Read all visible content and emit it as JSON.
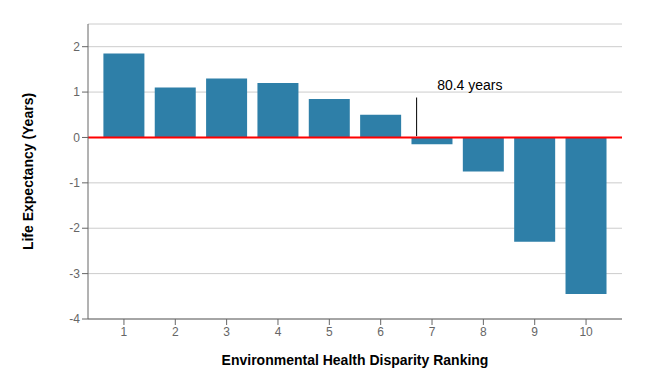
{
  "chart_data": {
    "type": "bar",
    "categories": [
      1,
      2,
      3,
      4,
      5,
      6,
      7,
      8,
      9,
      10
    ],
    "values": [
      1.85,
      1.1,
      1.3,
      1.2,
      0.85,
      0.5,
      -0.15,
      -0.75,
      -2.3,
      -3.45
    ],
    "color": "#2e7fa8",
    "xlabel": "Environmental Health Disparity Ranking",
    "ylabel": "Life Expectancy (Years)",
    "xlim": [
      0.3,
      10.7
    ],
    "xticks": [
      1,
      2,
      3,
      4,
      5,
      6,
      7,
      8,
      9,
      10
    ],
    "ylim": [
      -4,
      2.5
    ],
    "yticks": [
      -4,
      -3,
      -2,
      -1,
      0,
      1,
      2
    ],
    "grid": true,
    "reference_lines": [
      {
        "y": 0,
        "color": "#ff0000"
      }
    ],
    "annotations": [
      {
        "text": "80.4 years",
        "x": 7.1,
        "y": 1.05
      }
    ],
    "lines": [
      {
        "x": [
          6.7,
          6.7
        ],
        "y": [
          0.88,
          0.03
        ],
        "color": "black"
      }
    ]
  }
}
